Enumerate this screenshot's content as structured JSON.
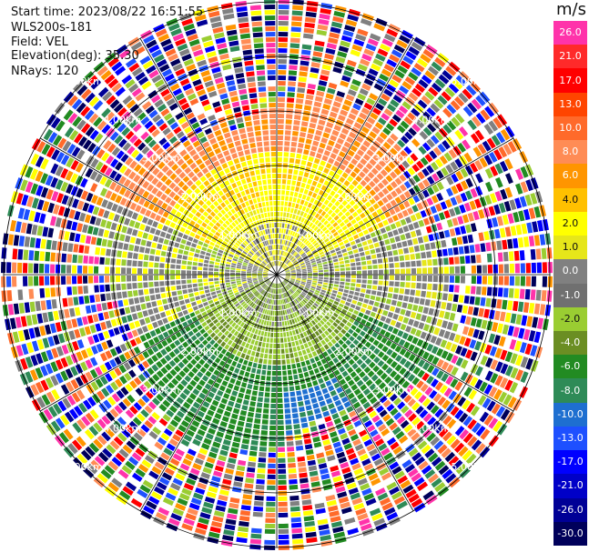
{
  "header": {
    "start_time": "Start time: 2023/08/22 16:51:55",
    "instrument": "WLS200s-181",
    "field": "Field: VEL",
    "elevation": "Elevation(deg): 35.30",
    "nrays": "NRays: 120"
  },
  "colorbar": {
    "unit": "m/s",
    "ticks": [
      "26.0",
      "21.0",
      "17.0",
      "13.0",
      "10.0",
      "8.0",
      "6.0",
      "4.0",
      "2.0",
      "1.0",
      "0.0",
      "-1.0",
      "-2.0",
      "-4.0",
      "-6.0",
      "-8.0",
      "-10.0",
      "-13.0",
      "-17.0",
      "-21.0",
      "-26.0",
      "-30.0"
    ],
    "colors": [
      "#ff33aa",
      "#ff2a2a",
      "#ff0000",
      "#ff4500",
      "#ff6a2a",
      "#ff8c55",
      "#ff9500",
      "#ffc000",
      "#ffff00",
      "#e6e61a",
      "#808080",
      "#707070",
      "#9acd32",
      "#6b8e23",
      "#228b22",
      "#2e8b57",
      "#1e6fd0",
      "#1e50ff",
      "#0000ff",
      "#0000c8",
      "#000096",
      "#00005a"
    ]
  },
  "chart_data": {
    "type": "ppi",
    "field": "VEL",
    "units": "m/s",
    "nrays": 120,
    "elevation_deg": 35.3,
    "range_rings": [
      "1.00km",
      "2.00km",
      "3.00km",
      "4.00km",
      "5.00km"
    ],
    "spokes_deg": [
      0,
      30,
      60,
      90,
      120,
      150,
      180,
      210,
      240,
      270,
      300,
      330
    ],
    "max_range_km": 5.0,
    "sectors": [
      {
        "name": "north-near",
        "az_from": 300,
        "az_to": 60,
        "r_from": 0.2,
        "r_to": 3.3,
        "velocity": [
          2.0,
          6.0
        ]
      },
      {
        "name": "east-west-center",
        "az_from": 60,
        "az_to": 120,
        "r_from": 0.2,
        "r_to": 3.0,
        "velocity": [
          -1.0,
          1.0
        ]
      },
      {
        "name": "south-near",
        "az_from": 120,
        "az_to": 240,
        "r_from": 0.2,
        "r_to": 3.0,
        "velocity": [
          -6.0,
          -2.0
        ]
      },
      {
        "name": "southeast-blue",
        "az_from": 150,
        "az_to": 175,
        "r_from": 2.2,
        "r_to": 3.0,
        "velocity": [
          -10.0,
          -8.0
        ]
      },
      {
        "name": "far-noise",
        "az_from": 0,
        "az_to": 360,
        "r_from": 3.3,
        "r_to": 5.0,
        "velocity": "noise"
      }
    ]
  }
}
